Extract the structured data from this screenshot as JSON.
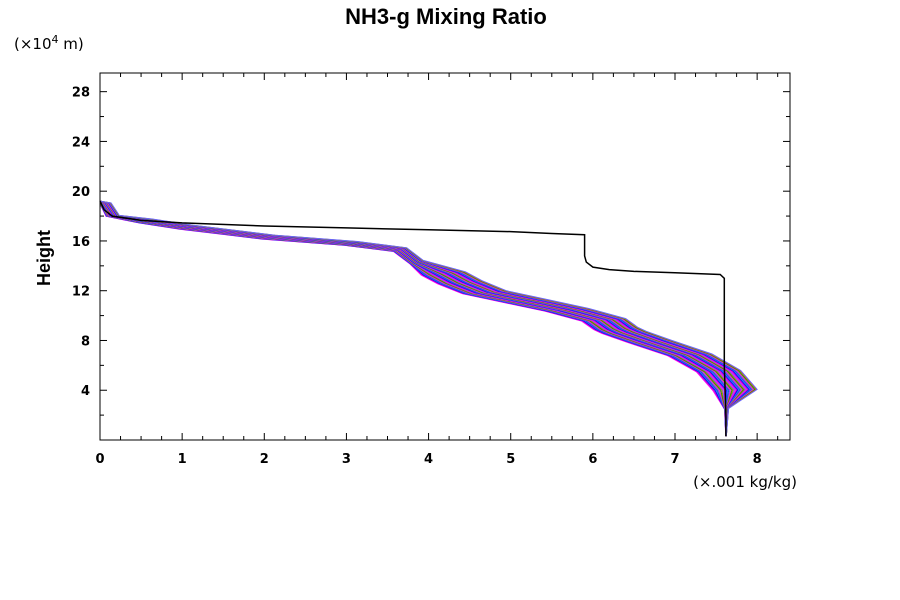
{
  "chart_data": {
    "type": "line",
    "title": "NH3-g Mixing Ratio",
    "ylabel": "Height",
    "y_unit_base": "(×10",
    "y_unit_exp": "4",
    "y_unit_tail": " m)",
    "x_unit": "(×.001 kg/kg)",
    "xlim": [
      0,
      8.4
    ],
    "ylim": [
      0,
      29.5
    ],
    "x_ticks": [
      0,
      1,
      2,
      3,
      4,
      5,
      6,
      7,
      8
    ],
    "y_ticks": [
      4,
      8,
      12,
      16,
      20,
      24,
      28
    ],
    "grid": false,
    "legend": "none",
    "series": [
      {
        "color": "#000000",
        "points": [
          [
            7.62,
            0.3
          ],
          [
            7.62,
            2.0
          ],
          [
            7.61,
            4.0
          ],
          [
            7.6,
            6.0
          ],
          [
            7.6,
            10.0
          ],
          [
            7.6,
            13.0
          ],
          [
            7.55,
            13.3
          ],
          [
            7.0,
            13.45
          ],
          [
            6.5,
            13.55
          ],
          [
            6.2,
            13.7
          ],
          [
            6.0,
            13.9
          ],
          [
            5.92,
            14.3
          ],
          [
            5.9,
            14.8
          ],
          [
            5.9,
            16.5
          ],
          [
            5.5,
            16.6
          ],
          [
            5.0,
            16.75
          ],
          [
            4.0,
            16.9
          ],
          [
            3.0,
            17.05
          ],
          [
            2.0,
            17.2
          ],
          [
            1.0,
            17.45
          ],
          [
            0.5,
            17.65
          ],
          [
            0.15,
            18.0
          ],
          [
            0.05,
            18.5
          ],
          [
            0.0,
            19.2
          ]
        ]
      }
    ],
    "ensemble": {
      "member_count": 40,
      "colors": [
        "#ff00ff",
        "#cc00cc",
        "#0000ff",
        "#3366ff",
        "#0066cc",
        "#9933ff",
        "#ff3399",
        "#00aa00",
        "#cc6600",
        "#6666ff"
      ],
      "base_curve": [
        [
          7.62,
          0.3
        ],
        [
          7.61,
          2.5
        ],
        [
          7.55,
          4.0
        ],
        [
          7.35,
          5.5
        ],
        [
          7.0,
          6.8
        ],
        [
          6.5,
          7.9
        ],
        [
          6.2,
          8.6
        ],
        [
          6.1,
          8.9
        ],
        [
          5.95,
          9.6
        ],
        [
          5.5,
          10.4
        ],
        [
          5.0,
          11.1
        ],
        [
          4.5,
          11.8
        ],
        [
          4.2,
          12.6
        ],
        [
          4.0,
          13.3
        ],
        [
          3.8,
          14.2
        ],
        [
          3.6,
          15.2
        ],
        [
          3.0,
          15.7
        ],
        [
          2.0,
          16.2
        ],
        [
          1.5,
          16.6
        ],
        [
          1.0,
          17.0
        ],
        [
          0.5,
          17.5
        ],
        [
          0.1,
          18.0
        ],
        [
          0.0,
          19.0
        ]
      ],
      "x_shift_range": [
        -0.15,
        0.75
      ],
      "top_point": [
        0.0,
        19.2
      ]
    }
  }
}
